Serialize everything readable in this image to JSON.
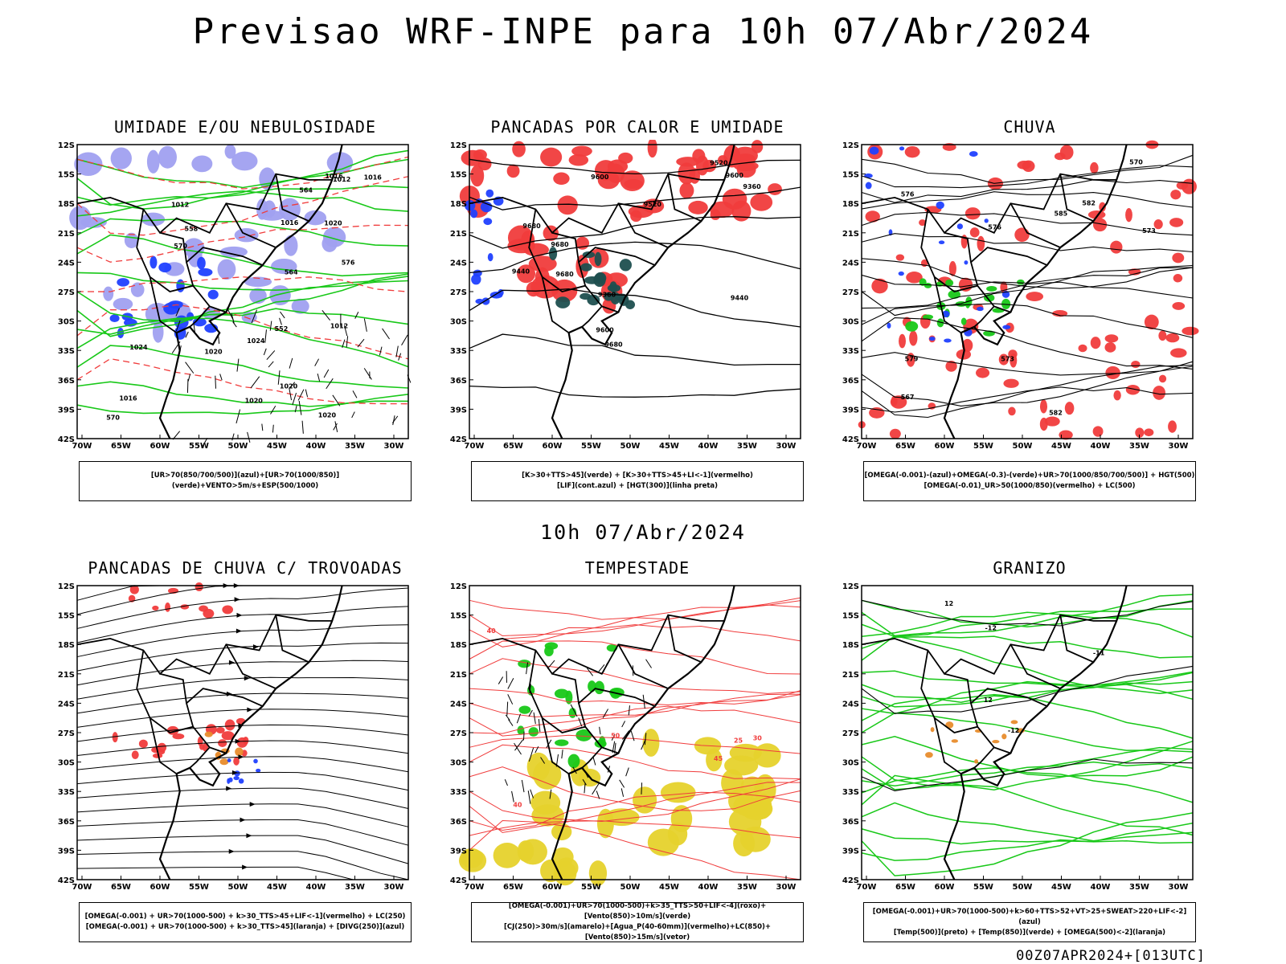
{
  "title": "Previsao WRF-INPE  para 10h 07/Abr/2024",
  "mid_time": "10h 07/Abr/2024",
  "footer": "00Z07APR2024+[013UTC]",
  "axes": {
    "lat_labels": [
      "12S",
      "15S",
      "18S",
      "21S",
      "24S",
      "27S",
      "30S",
      "33S",
      "36S",
      "39S",
      "42S"
    ],
    "lon_labels": [
      "70W",
      "65W",
      "60W",
      "55W",
      "50W",
      "45W",
      "40W",
      "35W",
      "30W"
    ]
  },
  "colors": {
    "red": "#f03c3c",
    "green": "#18c818",
    "blue": "#2040ff",
    "lavender": "#a0a0f0",
    "dark_teal": "#1e4f4f",
    "yellow": "#e6d22c",
    "orange": "#e88c2c",
    "black": "#000000"
  },
  "panels": [
    {
      "id": "umidade",
      "title": "UMIDADE E/OU NEBULOSIDADE",
      "legend": [
        "[UR>70(850/700/500)](azul)+[UR>70(1000/850)](verde)+VENTO>5m/s+ESP(500/1000)"
      ],
      "labels": [
        "1012",
        "1012",
        "1016",
        "1012",
        "1020",
        "1020",
        "1016",
        "1020",
        "1020",
        "1024",
        "1024",
        "1016",
        "1016",
        "1020",
        "576",
        "570",
        "564",
        "552",
        "558",
        "564",
        "570"
      ]
    },
    {
      "id": "pancadas",
      "title": "PANCADAS POR CALOR E UMIDADE",
      "legend": [
        "[K>30+TTS>45](verde) + [K>30+TTS>45+LI<-1](vermelho)",
        "[LIF](cont.azul) + [HGT(300)](linha preta)"
      ],
      "labels": [
        "9680",
        "9680",
        "9680",
        "9680",
        "9600",
        "9600",
        "9520",
        "9520",
        "9440",
        "9440",
        "9360",
        "9360",
        "9600"
      ]
    },
    {
      "id": "chuva",
      "title": "CHUVA",
      "legend": [
        "[OMEGA(-0.001)-(azul)+OMEGA(-0.3)-(verde)+UR>70(1000/850/700/500)] + HGT(500)",
        "[OMEGA(-0.01)_UR>50(1000/850)(vermelho) + LC(500)"
      ],
      "labels": [
        "582",
        "576",
        "573",
        "570",
        "567",
        "585",
        "582",
        "579",
        "576",
        "573"
      ]
    },
    {
      "id": "trovoadas",
      "title": "PANCADAS DE CHUVA C/ TROVOADAS",
      "legend": [
        "[OMEGA(-0.001) + UR>70(1000-500) + k>30_TTS>45+LIF<-1](vermelho) + LC(250)",
        "[OMEGA(-0.001) + UR>70(1000-500) + k>30_TTS>45](laranja) + [DIVG(250)](azul)"
      ]
    },
    {
      "id": "tempestade",
      "title": "TEMPESTADE",
      "legend": [
        "[OMEGA(-0.001)+UR>70(1000-500)+k>35_TTS>50+LIF<-4](roxo)+[Vento(850)>10m/s](verde)",
        "[CJ(250)>30m/s](amarelo)+[Agua_P(40-60mm)](vermelho)+LC(850)+[Vento(850)>15m/s](vetor)"
      ],
      "labels": [
        "50",
        "40",
        "45",
        "40",
        "30",
        "25"
      ]
    },
    {
      "id": "granizo",
      "title": "GRANIZO",
      "legend": [
        "[OMEGA(-0.001)+UR>70(1000-500)+k>60+TTS>52+VT>25+SWEAT>220+LIF<-2](azul)",
        "[Temp(500)](preto) + [Temp(850)](verde) + [OMEGA(500)<-2](laranja)"
      ],
      "labels": [
        "-11",
        "-12",
        "-12",
        "12",
        "12"
      ]
    }
  ]
}
